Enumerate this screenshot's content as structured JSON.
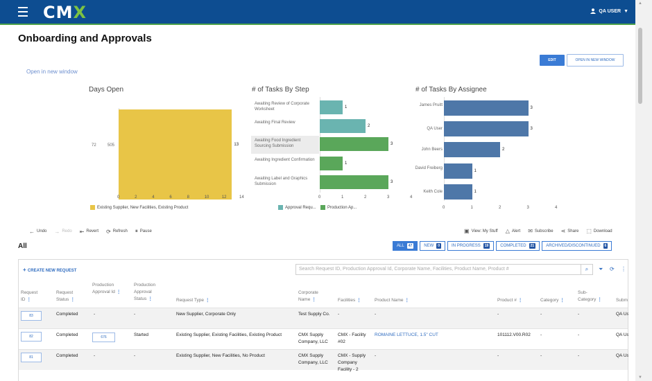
{
  "header": {
    "logo": "CMX",
    "user": "QA USER"
  },
  "page": {
    "title": "Onboarding and Approvals",
    "edit": "EDIT",
    "open_new": "OPEN IN NEW WINDOW",
    "open_link": "Open in new window"
  },
  "colors": {
    "header": "#0d4d91",
    "accent": "#4fa34a",
    "primary": "#3a7bd5",
    "yellow": "#e8c547",
    "teal": "#6ab4b0",
    "green": "#5aa75a",
    "blue": "#4e77a8"
  },
  "chart_data": [
    {
      "type": "bar",
      "title": "Days Open",
      "orientation": "horizontal",
      "categories": [
        "72"
      ],
      "category_note": "505",
      "values": [
        13
      ],
      "xlim": [
        0,
        14
      ],
      "xticks": [
        "0",
        "2",
        "4",
        "6",
        "8",
        "10",
        "12",
        "14"
      ],
      "legend": [
        "Existing Supplier, New Facilities, Existing Product"
      ]
    },
    {
      "type": "bar",
      "title": "# of Tasks By Step",
      "orientation": "horizontal",
      "categories": [
        "Awaiting Review of Corporate Worksheet",
        "Awaiting Final Review",
        "Awaiting Food Ingredient Sourcing Submission",
        "Awaiting Ingredient Confirmation",
        "Awaiting Label and Graphics Submission"
      ],
      "values": [
        1,
        2,
        3,
        1,
        3
      ],
      "series_of": [
        "Approval Requ...",
        "Approval Requ...",
        "Production Ap...",
        "Production Ap...",
        "Production Ap..."
      ],
      "xlim": [
        0,
        4
      ],
      "xticks": [
        "0",
        "1",
        "2",
        "3",
        "4"
      ],
      "legend": [
        "Approval Requ...",
        "Production Ap..."
      ]
    },
    {
      "type": "bar",
      "title": "# of Tasks By Assignee",
      "orientation": "horizontal",
      "categories": [
        "James Pruitt",
        "QA User",
        "John Beers",
        "David Freiberg",
        "Keith Cole"
      ],
      "values": [
        3,
        3,
        2,
        1,
        1
      ],
      "xlim": [
        0,
        4
      ],
      "xticks": [
        "0",
        "1",
        "2",
        "3",
        "4"
      ]
    }
  ],
  "toolbar": {
    "left": [
      "Undo",
      "Redo",
      "Revert",
      "Refresh",
      "Pause"
    ],
    "right": [
      "View: My Stuff",
      "Alert",
      "Subscribe",
      "Share",
      "Download"
    ]
  },
  "list": {
    "title": "All",
    "tabs": [
      {
        "label": "ALL",
        "count": "47"
      },
      {
        "label": "NEW",
        "count": "0"
      },
      {
        "label": "IN PROGRESS",
        "count": "19"
      },
      {
        "label": "COMPLETED",
        "count": "21"
      },
      {
        "label": "ARCHIVED/DISCONTINUED",
        "count": "6"
      }
    ],
    "create": "CREATE NEW REQUEST",
    "search_placeholder": "Search Request ID, Production Approval Id, Corporate Name, Facilities, Product Name, Product #",
    "columns": [
      "Request ID",
      "Request Status",
      "Production Approval Id",
      "Production Approval Status",
      "Request Type",
      "Corporate Name",
      "Facilities",
      "Product Name",
      "Product #",
      "Category",
      "Sub-Category",
      "Subm"
    ],
    "rows": [
      {
        "id": "83",
        "status": "Completed",
        "pa_id": "-",
        "pa_status": "-",
        "type": "New Supplier, Corporate Only",
        "corp": "Test Supply Co.",
        "facilities": "-",
        "product": "-",
        "product_no": "-",
        "category": "-",
        "sub": "-",
        "subm": "QA Us"
      },
      {
        "id": "82",
        "status": "Completed",
        "pa_id": "676",
        "pa_status": "Started",
        "type": "Existing Supplier, Existing Facilities, Existing Product",
        "corp": "CMX Supply Company, LLC",
        "facilities": "CMX - Facility #02",
        "product": "ROMAINE LETTUCE, 1.5\" CUT",
        "product_no": "101112.V00.R02",
        "category": "-",
        "sub": "-",
        "subm": "QA Us"
      },
      {
        "id": "81",
        "status": "Completed",
        "pa_id": "-",
        "pa_status": "-",
        "type": "Existing Supplier, New Facilities, No Product",
        "corp": "CMX Supply Company, LLC",
        "facilities": "CMX - Supply Company Facility - 2",
        "product": "-",
        "product_no": "-",
        "category": "-",
        "sub": "-",
        "subm": "QA Us"
      }
    ]
  }
}
